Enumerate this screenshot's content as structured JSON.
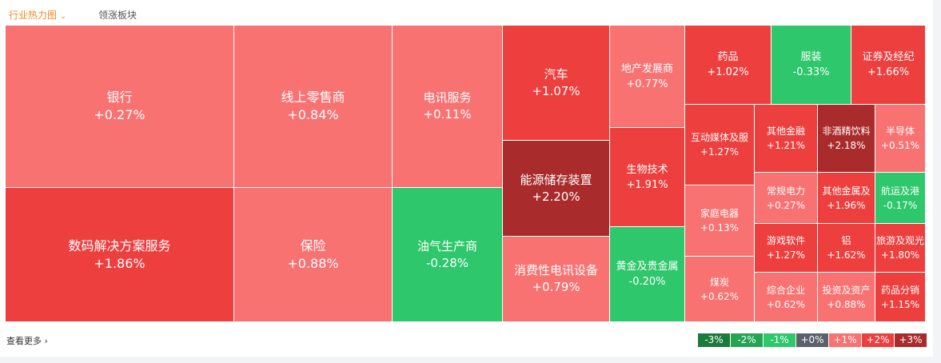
{
  "header": {
    "tabs": [
      {
        "label": "行业热力图",
        "active": true
      },
      {
        "label": "领涨板块",
        "active": false
      }
    ]
  },
  "tiles": [
    {
      "name": "银行",
      "change": "+0.27%",
      "color": "#f87272"
    },
    {
      "name": "数码解决方案服务",
      "change": "+1.86%",
      "color": "#ee3f3f"
    },
    {
      "name": "线上零售商",
      "change": "+0.84%",
      "color": "#f87272"
    },
    {
      "name": "保险",
      "change": "+0.88%",
      "color": "#f87272"
    },
    {
      "name": "电讯服务",
      "change": "+0.11%",
      "color": "#f87272"
    },
    {
      "name": "油气生产商",
      "change": "-0.28%",
      "color": "#2ec76b"
    },
    {
      "name": "汽车",
      "change": "+1.07%",
      "color": "#ee3f3f"
    },
    {
      "name": "能源储存装置",
      "change": "+2.20%",
      "color": "#a92b2b"
    },
    {
      "name": "消费性电讯设备",
      "change": "+0.79%",
      "color": "#f87272"
    },
    {
      "name": "地产发展商",
      "change": "+0.77%",
      "color": "#f87272"
    },
    {
      "name": "生物技术",
      "change": "+1.91%",
      "color": "#ee3f3f"
    },
    {
      "name": "黄金及贵金属",
      "change": "-0.20%",
      "color": "#2ec76b"
    },
    {
      "name": "药品",
      "change": "+1.02%",
      "color": "#ee3f3f"
    },
    {
      "name": "服装",
      "change": "-0.33%",
      "color": "#2ec76b"
    },
    {
      "name": "证券及经纪",
      "change": "+1.66%",
      "color": "#ee3f3f"
    },
    {
      "name": "互动媒体及服",
      "change": "+1.27%",
      "color": "#ee3f3f"
    },
    {
      "name": "家庭电器",
      "change": "+0.13%",
      "color": "#f87272"
    },
    {
      "name": "煤炭",
      "change": "+0.62%",
      "color": "#f87272"
    },
    {
      "name": "其他金融",
      "change": "+1.21%",
      "color": "#ee3f3f"
    },
    {
      "name": "非酒精饮料",
      "change": "+2.18%",
      "color": "#a92b2b"
    },
    {
      "name": "半导体",
      "change": "+0.51%",
      "color": "#f87272"
    },
    {
      "name": "常规电力",
      "change": "+0.27%",
      "color": "#f87272"
    },
    {
      "name": "其他金属及",
      "change": "+1.96%",
      "color": "#ee3f3f"
    },
    {
      "name": "航运及港",
      "change": "-0.17%",
      "color": "#2ec76b"
    },
    {
      "name": "游戏软件",
      "change": "+1.27%",
      "color": "#ee3f3f"
    },
    {
      "name": "铝",
      "change": "+1.62%",
      "color": "#ee3f3f"
    },
    {
      "name": "旅游及观光",
      "change": "+1.80%",
      "color": "#ee3f3f"
    },
    {
      "name": "综合企业",
      "change": "+0.62%",
      "color": "#f87272"
    },
    {
      "name": "投资及资产",
      "change": "+0.88%",
      "color": "#f87272"
    },
    {
      "name": "药品分销",
      "change": "+1.15%",
      "color": "#ee3f3f"
    }
  ],
  "footer": {
    "more": "查看更多",
    "legend": [
      {
        "label": "-3%",
        "color": "#1d7a3d"
      },
      {
        "label": "-2%",
        "color": "#25a454"
      },
      {
        "label": "-1%",
        "color": "#2ec76b"
      },
      {
        "label": "+0%",
        "color": "#5b606b"
      },
      {
        "label": "+1%",
        "color": "#f87272"
      },
      {
        "label": "+2%",
        "color": "#ee3f3f"
      },
      {
        "label": "+3%",
        "color": "#a92b2b"
      }
    ]
  }
}
